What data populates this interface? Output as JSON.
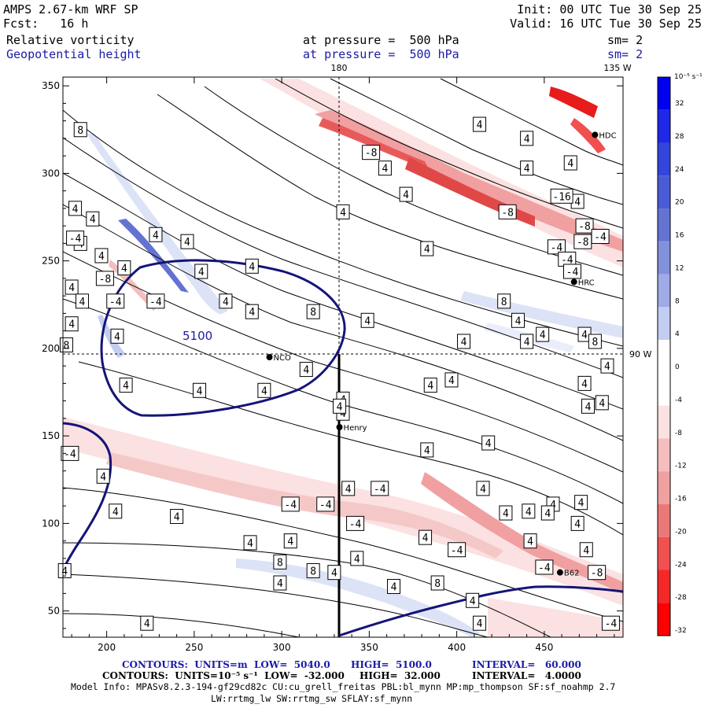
{
  "header": {
    "model": "AMPS 2.67-km WRF SP",
    "init": "Init: 00 UTC Tue 30 Sep 25",
    "fcst": "Fcst:   16 h",
    "valid": "Valid: 16 UTC Tue 30 Sep 25",
    "field1_name": "Relative vorticity",
    "field1_level": "at pressure =  500 hPa",
    "field1_sm": "sm= 2",
    "field2_name": "Geopotential height",
    "field2_level": "at pressure =  500 hPa",
    "field2_sm": "sm= 2"
  },
  "colors": {
    "blue_strong": "#0000e6",
    "blue_light": "#dde3f6",
    "red_strong": "#f00000",
    "red_light": "#fbe1e1",
    "height_contour": "#141478"
  },
  "chart_data": {
    "type": "heatmap",
    "title": "Relative vorticity / Geopotential height at 500 hPa",
    "x_ticks": [
      200,
      250,
      300,
      350,
      400,
      450
    ],
    "y_ticks": [
      50,
      100,
      150,
      200,
      250,
      300,
      350
    ],
    "xlim": [
      175,
      495
    ],
    "ylim": [
      35,
      355
    ],
    "meridians": [
      {
        "label": "180",
        "x": 334
      },
      {
        "label": "135 W",
        "x": 492
      }
    ],
    "parallels": [
      {
        "label": "90 W",
        "y": 195
      }
    ],
    "colorbar": {
      "unit_label": "10⁻⁵ s⁻¹",
      "ticks": [
        32,
        28,
        24,
        20,
        16,
        12,
        8,
        4,
        0,
        -4,
        -8,
        -12,
        -16,
        -20,
        -24,
        -28,
        -32
      ],
      "colors": [
        "#0000f0",
        "#1e28e6",
        "#3246dc",
        "#4b5ad7",
        "#6473d2",
        "#8291dc",
        "#a0aae6",
        "#c3cdf2",
        "#ffffff",
        "#ffffff",
        "#fbe1e1",
        "#f5bebe",
        "#f0a0a0",
        "#eb7878",
        "#f05050",
        "#f52828",
        "#ff0000"
      ]
    },
    "stations": [
      {
        "name": "NCO",
        "x": 293,
        "y": 195
      },
      {
        "name": "Henry",
        "x": 333,
        "y": 155
      },
      {
        "name": "HRC",
        "x": 467,
        "y": 238
      },
      {
        "name": "HDC",
        "x": 479,
        "y": 322
      },
      {
        "name": "B62",
        "x": 459,
        "y": 72
      }
    ],
    "height_contours": [
      {
        "label": "5100",
        "level": 5100
      },
      {
        "level": 5040
      }
    ],
    "vorticity_labels": [
      {
        "text": "8",
        "x": 185,
        "y": 325
      },
      {
        "text": "4",
        "x": 182,
        "y": 280
      },
      {
        "text": "4",
        "x": 185,
        "y": 260
      },
      {
        "text": "4",
        "x": 192,
        "y": 274
      },
      {
        "text": "-4",
        "x": 182,
        "y": 263
      },
      {
        "text": "4",
        "x": 197,
        "y": 253
      },
      {
        "text": "4",
        "x": 228,
        "y": 265
      },
      {
        "text": "4",
        "x": 246,
        "y": 261
      },
      {
        "text": "4",
        "x": 210,
        "y": 246
      },
      {
        "text": "4",
        "x": 254,
        "y": 244
      },
      {
        "text": "4",
        "x": 283,
        "y": 247
      },
      {
        "text": "-8",
        "x": 199,
        "y": 240
      },
      {
        "text": "4",
        "x": 180,
        "y": 235
      },
      {
        "text": "4",
        "x": 186,
        "y": 227
      },
      {
        "text": "-4",
        "x": 205,
        "y": 227
      },
      {
        "text": "-4",
        "x": 228,
        "y": 227
      },
      {
        "text": "4",
        "x": 268,
        "y": 227
      },
      {
        "text": "4",
        "x": 283,
        "y": 221
      },
      {
        "text": "8",
        "x": 318,
        "y": 221
      },
      {
        "text": "4",
        "x": 180,
        "y": 214
      },
      {
        "text": "8",
        "x": 177,
        "y": 202
      },
      {
        "text": "4",
        "x": 206,
        "y": 207
      },
      {
        "text": "4",
        "x": 211,
        "y": 179
      },
      {
        "text": "4",
        "x": 253,
        "y": 176
      },
      {
        "text": "4",
        "x": 290,
        "y": 176
      },
      {
        "text": "4",
        "x": 314,
        "y": 188
      },
      {
        "text": "4",
        "x": 335,
        "y": 171
      },
      {
        "text": "4",
        "x": 349,
        "y": 216
      },
      {
        "text": "-8",
        "x": 351,
        "y": 312
      },
      {
        "text": "4",
        "x": 359,
        "y": 303
      },
      {
        "text": "4",
        "x": 371,
        "y": 288
      },
      {
        "text": "4",
        "x": 335,
        "y": 278
      },
      {
        "text": "4",
        "x": 413,
        "y": 328
      },
      {
        "text": "4",
        "x": 440,
        "y": 303
      },
      {
        "text": "4",
        "x": 440,
        "y": 320
      },
      {
        "text": "4",
        "x": 465,
        "y": 306
      },
      {
        "text": "4",
        "x": 469,
        "y": 284
      },
      {
        "text": "-16",
        "x": 460,
        "y": 287
      },
      {
        "text": "-8",
        "x": 429,
        "y": 278
      },
      {
        "text": "-8",
        "x": 472,
        "y": 261
      },
      {
        "text": "-4",
        "x": 457,
        "y": 258
      },
      {
        "text": "-8",
        "x": 473,
        "y": 270
      },
      {
        "text": "-4",
        "x": 463,
        "y": 251
      },
      {
        "text": "-4",
        "x": 482,
        "y": 264
      },
      {
        "text": "-4",
        "x": 466,
        "y": 244
      },
      {
        "text": "4",
        "x": 383,
        "y": 257
      },
      {
        "text": "8",
        "x": 427,
        "y": 227
      },
      {
        "text": "4",
        "x": 435,
        "y": 216
      },
      {
        "text": "4",
        "x": 449,
        "y": 208
      },
      {
        "text": "4",
        "x": 473,
        "y": 208
      },
      {
        "text": "8",
        "x": 479,
        "y": 204
      },
      {
        "text": "4",
        "x": 404,
        "y": 204
      },
      {
        "text": "4",
        "x": 440,
        "y": 204
      },
      {
        "text": "4",
        "x": 486,
        "y": 190
      },
      {
        "text": "4",
        "x": 385,
        "y": 179
      },
      {
        "text": "4",
        "x": 397,
        "y": 182
      },
      {
        "text": "4",
        "x": 473,
        "y": 180
      },
      {
        "text": "4",
        "x": 483,
        "y": 169
      },
      {
        "text": "4",
        "x": 475,
        "y": 167
      },
      {
        "text": "4",
        "x": 335,
        "y": 163
      },
      {
        "text": "4",
        "x": 333,
        "y": 167
      },
      {
        "text": "4",
        "x": 418,
        "y": 146
      },
      {
        "text": "4",
        "x": 383,
        "y": 142
      },
      {
        "text": "-4",
        "x": 179,
        "y": 140
      },
      {
        "text": "4",
        "x": 198,
        "y": 127
      },
      {
        "text": "4",
        "x": 205,
        "y": 107
      },
      {
        "text": "4",
        "x": 240,
        "y": 104
      },
      {
        "text": "-4",
        "x": 305,
        "y": 111
      },
      {
        "text": "-4",
        "x": 325,
        "y": 111
      },
      {
        "text": "4",
        "x": 338,
        "y": 120
      },
      {
        "text": "-4",
        "x": 356,
        "y": 120
      },
      {
        "text": "-4",
        "x": 342,
        "y": 100
      },
      {
        "text": "4",
        "x": 415,
        "y": 120
      },
      {
        "text": "4",
        "x": 428,
        "y": 106
      },
      {
        "text": "4",
        "x": 441,
        "y": 107
      },
      {
        "text": "4",
        "x": 455,
        "y": 111
      },
      {
        "text": "4",
        "x": 452,
        "y": 106
      },
      {
        "text": "4",
        "x": 471,
        "y": 112
      },
      {
        "text": "4",
        "x": 469,
        "y": 100
      },
      {
        "text": "4",
        "x": 305,
        "y": 90
      },
      {
        "text": "4",
        "x": 382,
        "y": 92
      },
      {
        "text": "4",
        "x": 442,
        "y": 90
      },
      {
        "text": "4",
        "x": 282,
        "y": 89
      },
      {
        "text": "4",
        "x": 343,
        "y": 80
      },
      {
        "text": "8",
        "x": 299,
        "y": 78
      },
      {
        "text": "-4",
        "x": 400,
        "y": 85
      },
      {
        "text": "4",
        "x": 474,
        "y": 85
      },
      {
        "text": "4",
        "x": 176,
        "y": 73
      },
      {
        "text": "8",
        "x": 318,
        "y": 73
      },
      {
        "text": "4",
        "x": 330,
        "y": 72
      },
      {
        "text": "-4",
        "x": 450,
        "y": 75
      },
      {
        "text": "-8",
        "x": 480,
        "y": 72
      },
      {
        "text": "4",
        "x": 299,
        "y": 66
      },
      {
        "text": "4",
        "x": 364,
        "y": 64
      },
      {
        "text": "8",
        "x": 389,
        "y": 66
      },
      {
        "text": "4",
        "x": 409,
        "y": 56
      },
      {
        "text": "4",
        "x": 223,
        "y": 43
      },
      {
        "text": "4",
        "x": 413,
        "y": 43
      },
      {
        "text": "-4",
        "x": 488,
        "y": 43
      }
    ]
  },
  "footer": {
    "line1_a": "CONTOURS:  UNITS=m  LOW=  5040.0",
    "line1_b": "HIGH=  5100.0",
    "line1_c": "INTERVAL=   60.000",
    "line2_a": "CONTOURS:  UNITS=10⁻⁵ s⁻¹  LOW=  -32.000",
    "line2_b": "HIGH=  32.000",
    "line2_c": "INTERVAL=   4.0000",
    "line3": "Model Info: MPASv8.2.3-194-gf29cd82c CU:cu_grell_freitas PBL:bl_mynn MP:mp_thompson SF:sf_noahmp 2.7",
    "line4": "LW:rrtmg_lw SW:rrtmg_sw SFLAY:sf_mynn"
  }
}
